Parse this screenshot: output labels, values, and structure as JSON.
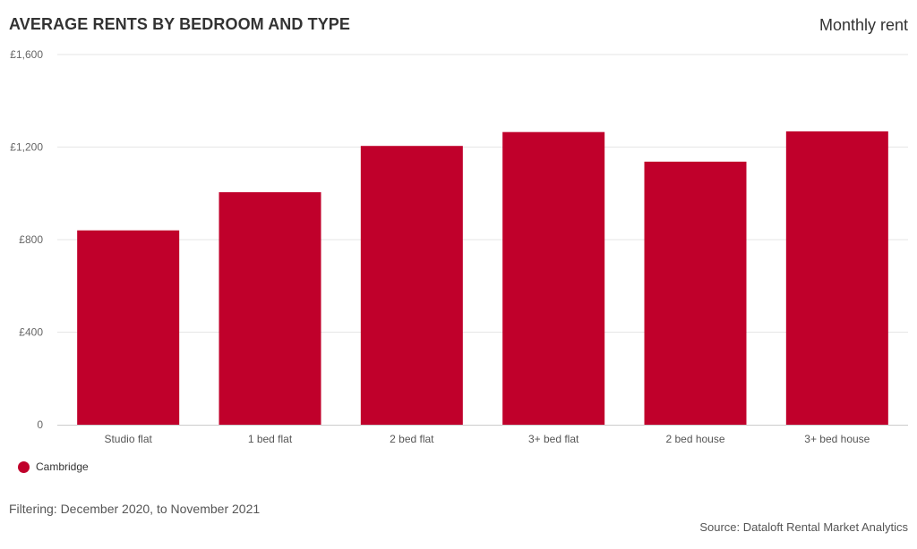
{
  "header": {
    "title": "AVERAGE RENTS BY BEDROOM AND TYPE",
    "subtitle": "Monthly rent"
  },
  "footer": {
    "filter_text": "Filtering: December 2020, to November 2021",
    "source_text": "Source: Dataloft Rental Market Analytics"
  },
  "colors": {
    "series": "#C0002B",
    "grid": "#E6E6E6",
    "axis": "#CCCCCC"
  },
  "chart_data": {
    "type": "bar",
    "title": "AVERAGE RENTS BY BEDROOM AND TYPE",
    "subtitle": "Monthly rent",
    "xlabel": "",
    "ylabel": "",
    "ylim": [
      0,
      1600
    ],
    "yticks": [
      0,
      400,
      800,
      1200,
      1600
    ],
    "ytick_labels": [
      "0",
      "£400",
      "£800",
      "£1,200",
      "£1,600"
    ],
    "categories": [
      "Studio flat",
      "1 bed flat",
      "2 bed flat",
      "3+ bed flat",
      "2 bed house",
      "3+ bed house"
    ],
    "series": [
      {
        "name": "Cambridge",
        "values": [
          840,
          1005,
          1205,
          1265,
          1137,
          1268
        ]
      }
    ],
    "grid": true,
    "legend_position": "bottom-left"
  }
}
